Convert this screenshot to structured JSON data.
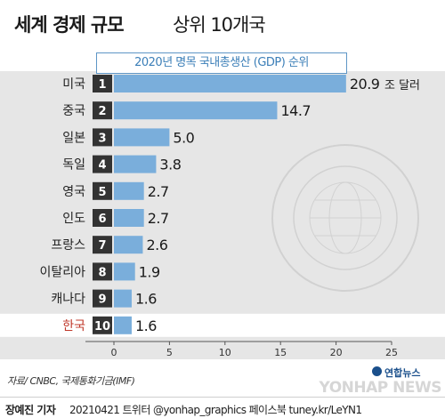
{
  "header": {
    "title_main": "세계 경제 규모",
    "title_sub": "상위 10개국",
    "subtitle": "2020년 명목 국내총생산 (GDP) 순위"
  },
  "chart_data": {
    "type": "bar",
    "orientation": "horizontal",
    "categories": [
      "미국",
      "중국",
      "일본",
      "독일",
      "영국",
      "인도",
      "프랑스",
      "이탈리아",
      "캐나다",
      "한국"
    ],
    "ranks": [
      "1",
      "2",
      "3",
      "4",
      "5",
      "6",
      "7",
      "8",
      "9",
      "10"
    ],
    "values": [
      20.9,
      14.7,
      5.0,
      3.8,
      2.7,
      2.7,
      2.6,
      1.9,
      1.6,
      1.6
    ],
    "value_labels": [
      "20.9",
      "14.7",
      "5.0",
      "3.8",
      "2.7",
      "2.7",
      "2.6",
      "1.9",
      "1.6",
      "1.6"
    ],
    "unit_label": "조 달러",
    "xlim": [
      0,
      25
    ],
    "xticks": [
      0,
      5,
      10,
      15,
      20,
      25
    ],
    "xtick_labels": [
      "0",
      "5",
      "10",
      "15",
      "20",
      "25"
    ],
    "grid": false,
    "highlight_category": "한국",
    "colors": {
      "bar": "#7aaedb",
      "rank_box": "#333333",
      "rank_text": "#ffffff",
      "highlight_label": "#c0392b",
      "highlight_row_bg": "#ffffff",
      "panel_bg": "#e6e6e6",
      "axis": "#555555"
    }
  },
  "footer": {
    "source": "자료/ CNBC, 국제통화기금(IMF)",
    "author": "장예진 기자",
    "info": "20210421 트위터 @yonhap_graphics  페이스북 tuney.kr/LeYN1",
    "logo_korean": "연합뉴스",
    "logo_english": "YONHAP NEWS"
  },
  "decor": {
    "watermark_icon": "imf-seal-watermark-icon"
  }
}
